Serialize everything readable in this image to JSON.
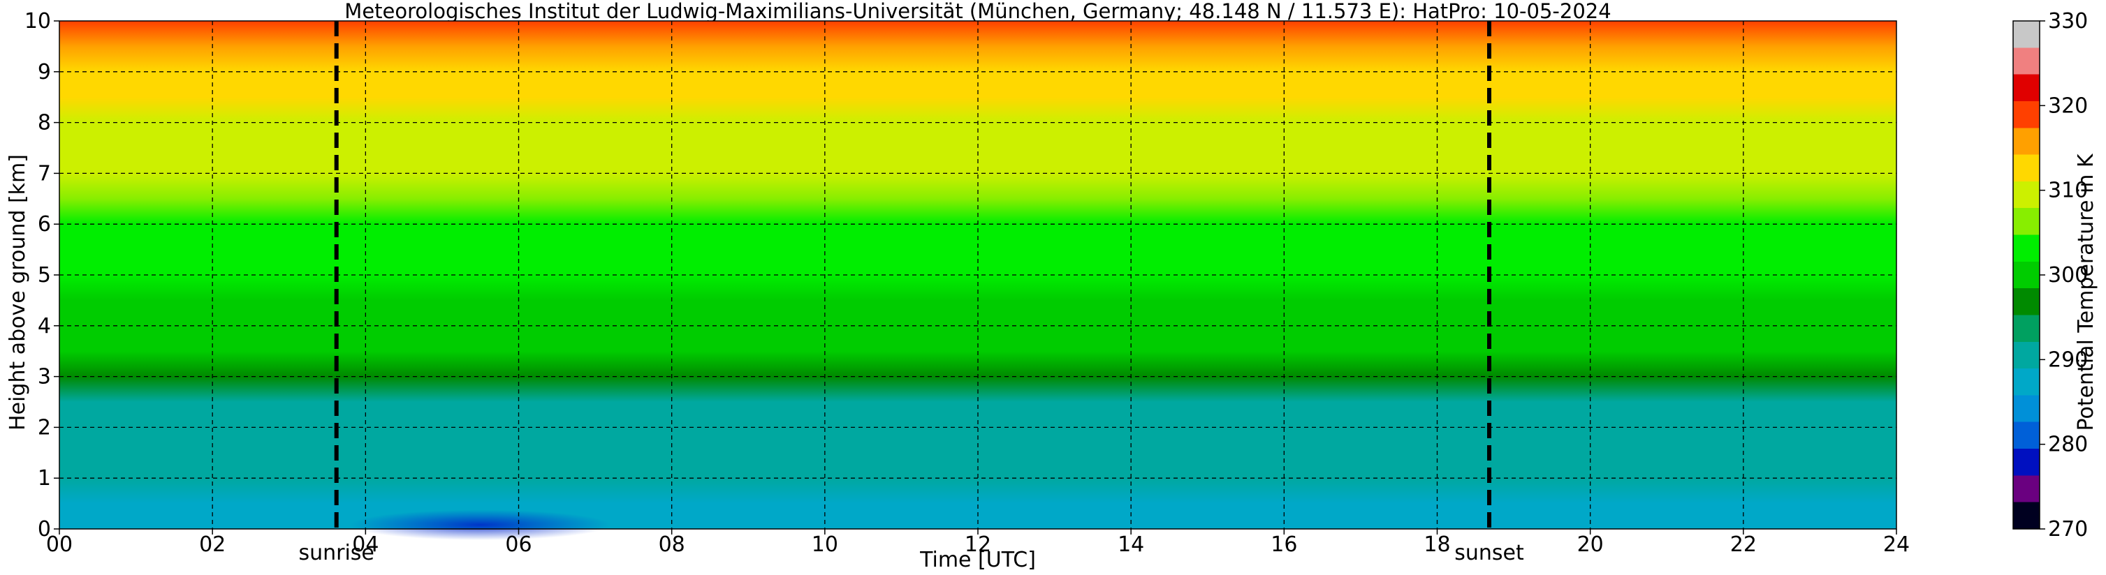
{
  "chart_data": {
    "type": "heatmap",
    "title": "Meteorologisches Institut der Ludwig-Maximilians-Universität (München, Germany; 48.148 N / 11.573 E):    HatPro: 10-05-2024",
    "xlabel": "Time [UTC]",
    "ylabel": "Height above ground [km]",
    "xlim": [
      0,
      24
    ],
    "ylim": [
      0,
      10
    ],
    "x_ticks": [
      "00",
      "02",
      "04",
      "06",
      "08",
      "10",
      "12",
      "14",
      "16",
      "18",
      "20",
      "22",
      "24"
    ],
    "y_ticks": [
      "0",
      "1",
      "2",
      "3",
      "4",
      "5",
      "6",
      "7",
      "8",
      "9",
      "10"
    ],
    "grid": true,
    "colorbar": {
      "label": "Potential Temperature in K",
      "range": [
        270,
        330
      ],
      "ticks": [
        "270",
        "280",
        "290",
        "300",
        "310",
        "320",
        "330"
      ]
    },
    "markers": [
      {
        "label": "sunrise",
        "x": 3.62
      },
      {
        "label": "sunset",
        "x": 18.68
      }
    ],
    "profile": {
      "heights_km": [
        0,
        0.5,
        1,
        1.5,
        2,
        2.5,
        3,
        3.5,
        4,
        4.5,
        5,
        5.5,
        6,
        6.5,
        7,
        7.5,
        8,
        8.5,
        9,
        9.5,
        10
      ],
      "theta_K": [
        287,
        288,
        290,
        290.5,
        291,
        292,
        297,
        298.5,
        299.5,
        300.5,
        302,
        303,
        304,
        306,
        308,
        310,
        311,
        312,
        313.5,
        315,
        318
      ]
    },
    "colormap": [
      "#000020",
      "#6a0080",
      "#0010c0",
      "#0060d8",
      "#0090d8",
      "#00a8c8",
      "#00a8a0",
      "#00a060",
      "#008a00",
      "#00cc00",
      "#00ee00",
      "#88ee00",
      "#ccf000",
      "#ffd800",
      "#ffa000",
      "#ff4000",
      "#e00000",
      "#f08080",
      "#c8c8c8"
    ]
  }
}
